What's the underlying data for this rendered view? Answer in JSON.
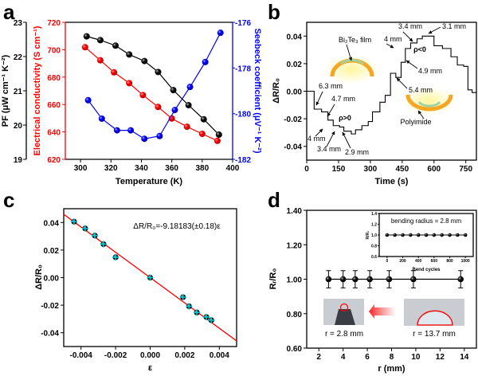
{
  "chart_data": [
    {
      "panel_label": "a",
      "type": "line",
      "xlabel": "Temperature (K)",
      "xlim": [
        290,
        400
      ],
      "xticks": [
        "300",
        "320",
        "340",
        "360",
        "380",
        "400"
      ],
      "y_axes": [
        {
          "label": "PF (μW cm⁻¹ K⁻²)",
          "ylim": [
            19,
            23
          ],
          "ticks": [
            "19",
            "20",
            "21",
            "22",
            "23"
          ],
          "color": "#000000"
        },
        {
          "label": "Electrical conductivity (S cm⁻¹)",
          "ylim": [
            620,
            720
          ],
          "ticks": [
            "620",
            "640",
            "660",
            "680",
            "700",
            "720"
          ],
          "color": "#ff0000"
        },
        {
          "label": "Seebeck coefficient (μV⁻¹ K⁻²)",
          "ylim": [
            -182,
            -176
          ],
          "ticks": [
            "-182",
            "-180",
            "-178",
            "-176"
          ],
          "color": "#0000ff"
        }
      ],
      "series": [
        {
          "axis": 0,
          "color": "#000000",
          "x": [
            304,
            313,
            323,
            332,
            342,
            351,
            361,
            371,
            381,
            391
          ],
          "y": [
            22.59,
            22.48,
            22.32,
            22.06,
            21.87,
            21.55,
            21.02,
            20.58,
            20.17,
            19.72
          ]
        },
        {
          "axis": 1,
          "color": "#ff0000",
          "x": [
            303,
            313,
            322,
            332,
            341,
            351,
            360,
            370,
            380,
            390
          ],
          "y": [
            701.8,
            692.3,
            683.5,
            675.6,
            666.9,
            658.2,
            649.8,
            643.8,
            638.6,
            633.5
          ]
        },
        {
          "axis": 2,
          "color": "#0000ff",
          "x": [
            305,
            314,
            324,
            333,
            342,
            352,
            362,
            372,
            382,
            392
          ],
          "y": [
            -179.41,
            -180.22,
            -180.73,
            -180.73,
            -181.1,
            -180.98,
            -179.84,
            -178.83,
            -177.74,
            -176.46
          ]
        }
      ]
    },
    {
      "panel_label": "b",
      "type": "line",
      "xlabel": "Time (s)",
      "ylabel": "ΔR/R₀",
      "xlim": [
        0,
        800
      ],
      "ylim": [
        -0.05,
        0.05
      ],
      "xticks": [
        "0",
        "150",
        "300",
        "450",
        "600",
        "750"
      ],
      "yticks": [
        "-0.04",
        "-0.02",
        "0.00",
        "0.02",
        "0.04"
      ],
      "series": [
        {
          "color": "#000000",
          "t": [
            0,
            35,
            70,
            100,
            125,
            155,
            175,
            210,
            230,
            260,
            290,
            310,
            345,
            370,
            395,
            420,
            445,
            465,
            490,
            520,
            545,
            600,
            640,
            680,
            710,
            740,
            760,
            780,
            800
          ],
          "v": [
            0.0,
            -0.013,
            -0.015,
            -0.021,
            -0.025,
            -0.026,
            -0.029,
            -0.031,
            -0.028,
            -0.025,
            -0.022,
            -0.015,
            -0.008,
            -0.003,
            0.013,
            0.01,
            0.021,
            0.031,
            0.035,
            0.038,
            0.04,
            0.033,
            0.031,
            0.025,
            0.019,
            0.018,
            0.001,
            -0.001,
            -0.001
          ]
        }
      ],
      "annotations": [
        "6.3 mm",
        "4.7 mm",
        "4 mm",
        "3.4 mm",
        "2.9 mm",
        "ρ>0",
        "Bi₂Te₃ film",
        "3.4 mm",
        "3.1 mm",
        "4 mm",
        "ρ<0",
        "4.9 mm",
        "5.4 mm",
        "Polyimide"
      ],
      "illustration_colors": {
        "substrate": "#f5a623",
        "film": "#9fd3a0",
        "glow": "#fff176"
      }
    },
    {
      "panel_label": "c",
      "type": "scatter",
      "xlabel": "ε",
      "ylabel": "ΔR/R₀",
      "xlim": [
        -0.005,
        0.005
      ],
      "ylim": [
        -0.05,
        0.05
      ],
      "xticks": [
        "-0.004",
        "-0.002",
        "0.000",
        "0.002",
        "0.004"
      ],
      "yticks": [
        "-0.04",
        "-0.02",
        "0.00",
        "0.02",
        "0.04"
      ],
      "points": {
        "x": [
          -0.0044,
          -0.00376,
          -0.0032,
          -0.0027,
          -0.002,
          0.0,
          0.0019,
          0.00225,
          0.0027,
          0.00325,
          0.00354
        ],
        "y": [
          0.0406,
          0.0357,
          0.0305,
          0.0243,
          0.0148,
          0.0,
          -0.0142,
          -0.0208,
          -0.0253,
          -0.0286,
          -0.0309
        ]
      },
      "marker_colors": {
        "fill": "#000000",
        "error": "#00c8d8"
      },
      "fit": {
        "slope": -9.18183,
        "color": "#ff0000",
        "equation": "ΔR/R₀=-9.18183(±0.18)ε"
      }
    },
    {
      "panel_label": "d",
      "type": "scatter",
      "xlabel": "r (mm)",
      "ylabel": "Rᵣ/R₀",
      "xlim": [
        1,
        15
      ],
      "ylim": [
        0.6,
        1.4
      ],
      "xticks": [
        "2",
        "4",
        "6",
        "8",
        "10",
        "12",
        "14"
      ],
      "yticks": [
        "0.60",
        "0.80",
        "1.00",
        "1.20",
        "1.40"
      ],
      "points": {
        "x": [
          2.8,
          4.0,
          5.0,
          6.2,
          7.8,
          9.8,
          13.7
        ],
        "y": [
          1.0,
          1.0,
          1.0,
          1.0,
          1.0,
          1.0,
          1.0
        ],
        "err": 0.05
      },
      "photo_labels": [
        "r = 2.8 mm",
        "r = 13.7 mm"
      ],
      "inset": {
        "title": "bending radius = 2.8 mm",
        "xlabel": "Bend cycles",
        "ylabel": "R/R₀",
        "xlim": [
          -100,
          1100
        ],
        "ylim": [
          0.6,
          1.4
        ],
        "xticks": [
          "0",
          "200",
          "400",
          "600",
          "800",
          "1000"
        ],
        "yticks": [
          "0.6",
          "0.8",
          "1.0",
          "1.2",
          "1.4"
        ],
        "x": [
          0,
          100,
          200,
          300,
          400,
          500,
          600,
          700,
          800,
          900,
          1000
        ],
        "y": [
          1.0,
          1.0,
          1.0,
          1.0,
          1.0,
          1.0,
          1.0,
          1.0,
          1.0,
          1.0,
          1.0
        ]
      }
    }
  ]
}
